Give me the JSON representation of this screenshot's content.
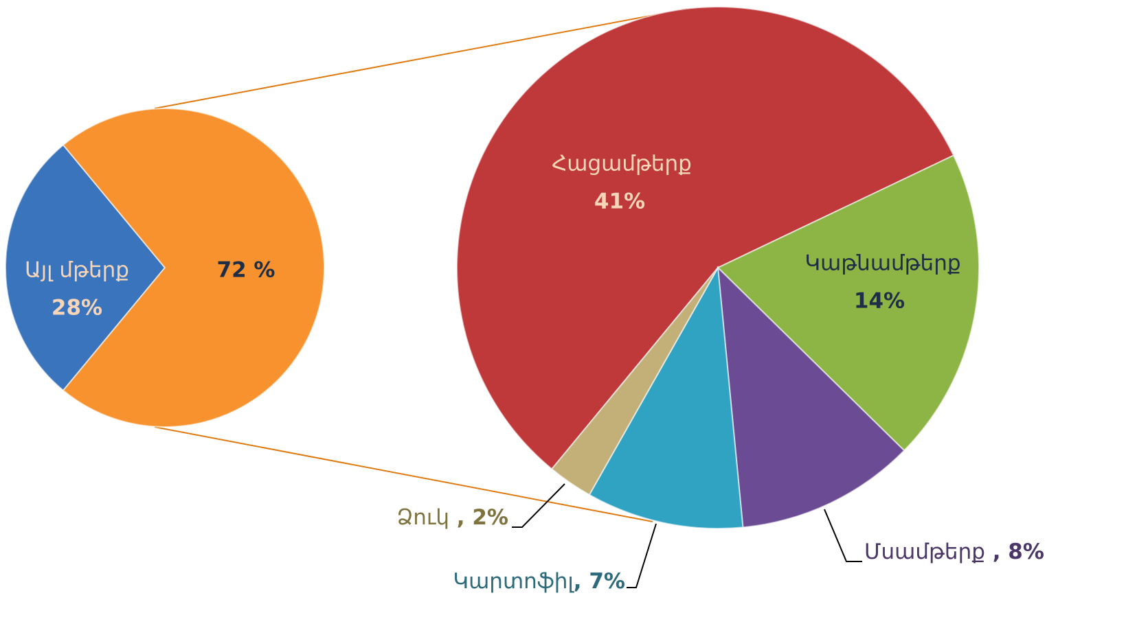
{
  "chart_data": [
    {
      "type": "pie",
      "categories": [
        "Այլ մթերք",
        null
      ],
      "values": [
        28,
        72
      ],
      "value_labels": [
        "28%",
        "72 %"
      ],
      "colors": [
        "#3a74bd",
        "#f7922f"
      ]
    },
    {
      "type": "pie",
      "categories": [
        "Հացամթերք",
        "Կաթնամթերք",
        "Մսամթերք",
        "Կարտոֆիլ",
        "Ձուկ"
      ],
      "values": [
        41,
        14,
        8,
        7,
        2
      ],
      "value_labels": [
        "41%",
        "14%",
        " , 8%",
        ", 7%",
        " , 2%"
      ],
      "colors": [
        "#c0393a",
        "#8db545",
        "#6b4c94",
        "#30a3c2",
        "#c2b078"
      ]
    }
  ]
}
